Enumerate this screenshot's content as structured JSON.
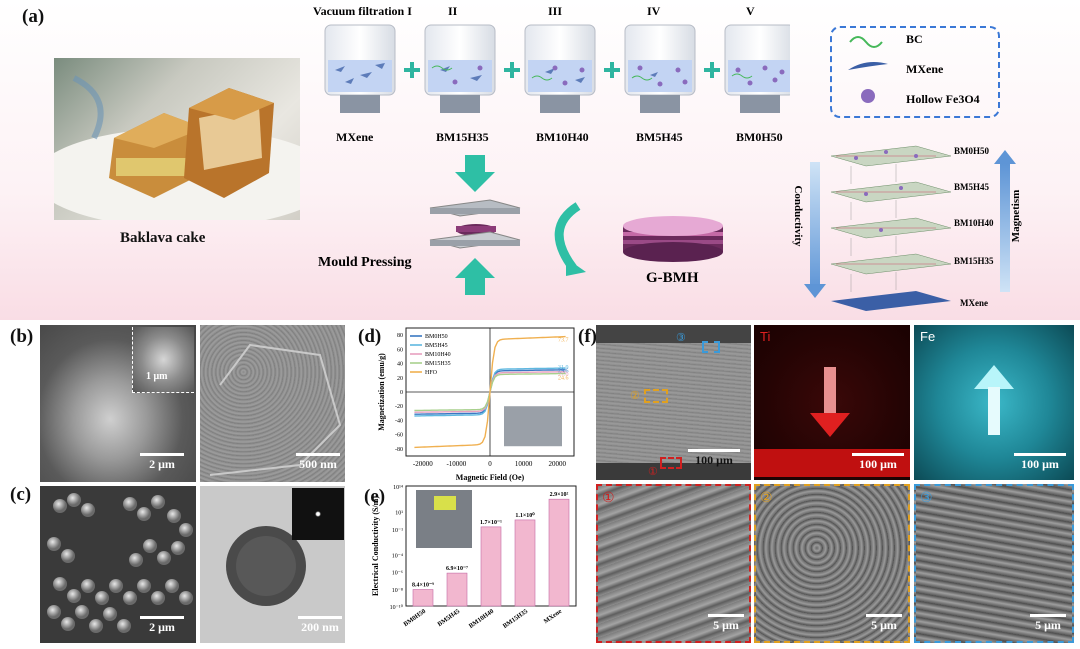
{
  "panel_a": {
    "label": "(a)",
    "photo_caption": "Baklava cake",
    "stages": [
      {
        "roman": "Vacuum filtration I",
        "sample": "MXene"
      },
      {
        "roman": "II",
        "sample": "BM15H35"
      },
      {
        "roman": "III",
        "sample": "BM10H40"
      },
      {
        "roman": "IV",
        "sample": "BM5H45"
      },
      {
        "roman": "V",
        "sample": "BM0H50"
      }
    ],
    "legend": {
      "bc": "BC",
      "mxene": "MXene",
      "fe3o4": "Hollow Fe3O4"
    },
    "mould_pressing": "Mould Pressing",
    "gbmh": "G-BMH",
    "conductivity": "Conductivity",
    "magnetism": "Magnetism",
    "stack_layers": [
      "BM0H50",
      "BM5H45",
      "BM10H40",
      "BM15H35",
      "MXene"
    ]
  },
  "panel_b": {
    "label": "(b)",
    "scale1": "2 μm",
    "inset_scale": "1 μm",
    "scale2": "500 nm"
  },
  "panel_c": {
    "label": "(c)",
    "scale1": "2 μm",
    "scale2": "200 nm"
  },
  "panel_f": {
    "label": "(f)",
    "map_ti": "Ti",
    "map_fe": "Fe",
    "scale_top": "100 μm",
    "scale_zoom": "5 μm",
    "markers": [
      "①",
      "②",
      "③"
    ]
  },
  "panel_d": {
    "label": "(d)",
    "chart_data": {
      "type": "line",
      "xlabel": "Magnetic Field (Oe)",
      "ylabel": "Magnetization (emu/g)",
      "xlim": [
        -25000,
        25000
      ],
      "ylim": [
        -90,
        90
      ],
      "xticks": [
        -20000,
        -10000,
        0,
        10000,
        20000
      ],
      "ytick_labels": [
        "-80",
        "-60",
        "-40",
        "-20",
        "0",
        "20",
        "40",
        "60",
        "80"
      ],
      "series": [
        {
          "name": "BM0H50",
          "color": "#3a78c2",
          "ms": 29.6
        },
        {
          "name": "BM5H45",
          "color": "#5fb8e0",
          "ms": 31.9
        },
        {
          "name": "BM10H40",
          "color": "#e8a0c0",
          "ms": 27.0
        },
        {
          "name": "BM15H35",
          "color": "#a8d08d",
          "ms": 24.6
        },
        {
          "name": "HFO",
          "color": "#f0b050",
          "ms": 73.7
        }
      ],
      "ms_labels": [
        "73.7",
        "31.9",
        "29.6",
        "27.0",
        "24.6"
      ]
    }
  },
  "panel_e": {
    "label": "(e)",
    "chart_data": {
      "type": "bar",
      "ylabel": "Electrical Conductivity (S/m)",
      "categories": [
        "BM0H50",
        "BM5H45",
        "BM10H40",
        "BM15H35",
        "MXene"
      ],
      "values": [
        8.4e-09,
        6.9e-07,
        0.17,
        1.1,
        290
      ],
      "value_labels": [
        "8.4×10⁻⁹",
        "6.9×10⁻⁷",
        "1.7×10⁻¹",
        "1.1×10⁰",
        "2.9×10²"
      ],
      "ytick_labels": [
        "10¹⁴",
        "10¹",
        "10⁻¹",
        "10⁻⁴",
        "10⁻⁶",
        "10⁻⁸",
        "10⁻¹⁰"
      ],
      "log_scale": true,
      "ylim": [
        1e-10,
        10000.0
      ]
    }
  }
}
